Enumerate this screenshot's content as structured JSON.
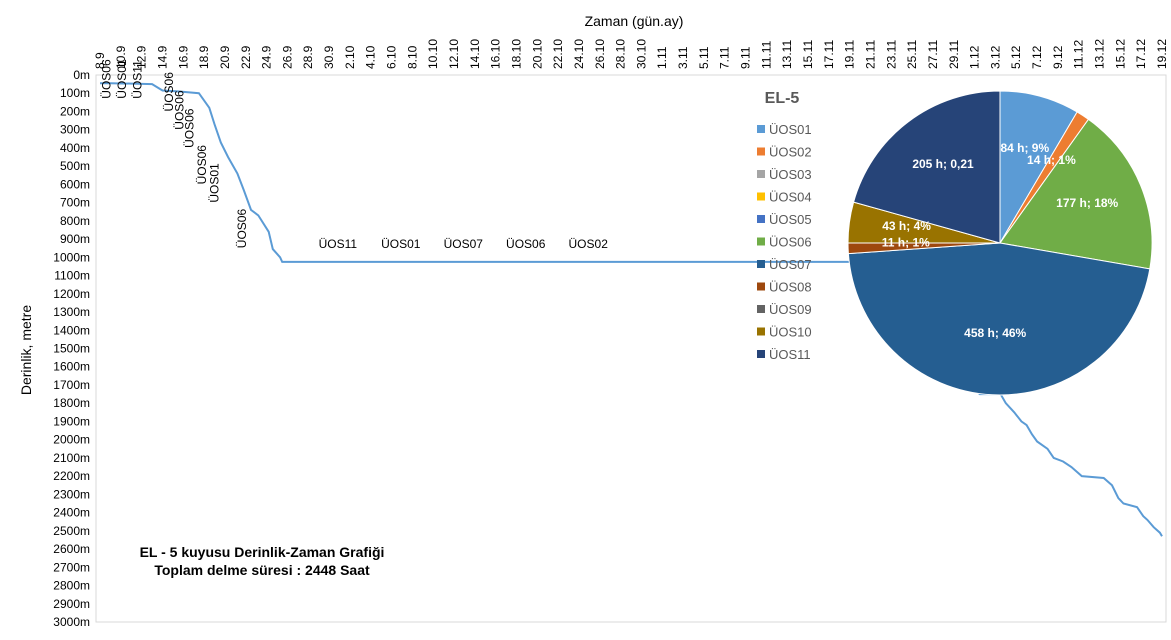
{
  "chart_data": [
    {
      "type": "line",
      "title": "EL - 5 kuyusu Derinlik-Zaman Grafiği",
      "subtitle": "Toplam delme süresi : 2448 Saat",
      "xlabel": "Zaman (gün.ay)",
      "ylabel": "Derinlik, metre",
      "x_ticks": [
        "8.9",
        "10.9",
        "12.9",
        "14.9",
        "16.9",
        "18.9",
        "20.9",
        "22.9",
        "24.9",
        "26.9",
        "28.9",
        "30.9",
        "2.10",
        "4.10",
        "6.10",
        "8.10",
        "10.10",
        "12.10",
        "14.10",
        "16.10",
        "18.10",
        "20.10",
        "22.10",
        "24.10",
        "26.10",
        "28.10",
        "30.10",
        "1.11",
        "3.11",
        "5.11",
        "7.11",
        "9.11",
        "11.11",
        "13.11",
        "15.11",
        "17.11",
        "19.11",
        "21.11",
        "23.11",
        "25.11",
        "27.11",
        "29.11",
        "1.12",
        "3.12",
        "5.12",
        "7.12",
        "9.12",
        "11.12",
        "13.12",
        "15.12",
        "17.12",
        "19.12"
      ],
      "y_ticks": [
        "0m",
        "100m",
        "200m",
        "300m",
        "400m",
        "500m",
        "600m",
        "700m",
        "800m",
        "900m",
        "1000m",
        "1100m",
        "1200m",
        "1300m",
        "1400m",
        "1500m",
        "1600m",
        "1700m",
        "1800m",
        "1900m",
        "2000m",
        "2100m",
        "2200m",
        "2300m",
        "2400m",
        "2500m",
        "2600m",
        "2700m",
        "2800m",
        "2900m",
        "3000m"
      ],
      "x_unit": "days since 8.9",
      "xlim": [
        0,
        102
      ],
      "ylim": [
        0,
        3000
      ],
      "y_inverted": true,
      "series": [
        {
          "name": "Derinlik",
          "color": "#5b9bd5",
          "points": [
            [
              0,
              45
            ],
            [
              1,
              45
            ],
            [
              5,
              50
            ],
            [
              6,
              85
            ],
            [
              7.5,
              90
            ],
            [
              9.5,
              100
            ],
            [
              10.5,
              180
            ],
            [
              11,
              270
            ],
            [
              11.6,
              370
            ],
            [
              12.3,
              450
            ],
            [
              13.2,
              540
            ],
            [
              13.8,
              630
            ],
            [
              14.5,
              740
            ],
            [
              15.2,
              770
            ],
            [
              16.2,
              860
            ],
            [
              16.6,
              955
            ],
            [
              17.3,
              1000
            ],
            [
              17.5,
              1025
            ],
            [
              73.5,
              1025
            ],
            [
              73.8,
              1070
            ],
            [
              74.5,
              1090
            ],
            [
              75,
              1130
            ],
            [
              75.5,
              1150
            ],
            [
              76,
              1170
            ],
            [
              76.5,
              1200
            ],
            [
              77,
              1230
            ],
            [
              77.6,
              1270
            ],
            [
              78,
              1300
            ],
            [
              78.6,
              1350
            ],
            [
              79,
              1400
            ],
            [
              79.5,
              1450
            ],
            [
              80,
              1480
            ],
            [
              80.5,
              1520
            ],
            [
              81,
              1540
            ],
            [
              81.5,
              1580
            ],
            [
              82,
              1610
            ],
            [
              82.5,
              1650
            ],
            [
              83,
              1680
            ],
            [
              83.5,
              1700
            ],
            [
              84.5,
              1750
            ],
            [
              86.5,
              1750
            ],
            [
              87,
              1800
            ],
            [
              87.8,
              1850
            ],
            [
              88.5,
              1900
            ],
            [
              89,
              1920
            ],
            [
              89.5,
              1970
            ],
            [
              90,
              2010
            ],
            [
              91,
              2050
            ],
            [
              91.6,
              2100
            ],
            [
              92.5,
              2120
            ],
            [
              93.3,
              2150
            ],
            [
              94.3,
              2200
            ],
            [
              96.4,
              2210
            ],
            [
              97.2,
              2250
            ],
            [
              97.8,
              2320
            ],
            [
              98.3,
              2350
            ],
            [
              99.6,
              2370
            ],
            [
              100.2,
              2420
            ],
            [
              100.6,
              2440
            ],
            [
              101.2,
              2480
            ],
            [
              101.8,
              2510
            ],
            [
              102,
              2530
            ]
          ]
        }
      ],
      "annotations": [
        {
          "text": "ÜOS06",
          "x": 1,
          "y": 130
        },
        {
          "text": "ÜOS01",
          "x": 2.5,
          "y": 130
        },
        {
          "text": "ÜOS11",
          "x": 4,
          "y": 130
        },
        {
          "text": "ÜOS06",
          "x": 7,
          "y": 200
        },
        {
          "text": "ÜOS06",
          "x": 8,
          "y": 300
        },
        {
          "text": "ÜOS06",
          "x": 9,
          "y": 400
        },
        {
          "text": "ÜOS06",
          "x": 10.2,
          "y": 600
        },
        {
          "text": "ÜOS01",
          "x": 11.4,
          "y": 700
        },
        {
          "text": "ÜOS06",
          "x": 14,
          "y": 950
        },
        {
          "text": "ÜOS11",
          "x": 21,
          "y": 950
        },
        {
          "text": "ÜOS01",
          "x": 27,
          "y": 950
        },
        {
          "text": "ÜOS07",
          "x": 33,
          "y": 950
        },
        {
          "text": "ÜOS06",
          "x": 39,
          "y": 950
        },
        {
          "text": "ÜOS02",
          "x": 45,
          "y": 950
        }
      ]
    },
    {
      "type": "pie",
      "title": "EL-5",
      "labels": [
        "ÜOS01",
        "ÜOS02",
        "ÜOS03",
        "ÜOS04",
        "ÜOS05",
        "ÜOS06",
        "ÜOS07",
        "ÜOS08",
        "ÜOS09",
        "ÜOS10",
        "ÜOS11"
      ],
      "colors": [
        "#5b9bd5",
        "#ed7d31",
        "#a5a5a5",
        "#ffc000",
        "#4472c4",
        "#70ad47",
        "#255e91",
        "#9e480e",
        "#636363",
        "#997300",
        "#264478"
      ],
      "values": [
        84,
        14,
        0,
        0,
        0,
        177,
        458,
        11,
        0,
        43,
        205
      ],
      "slice_labels": [
        {
          "series": "ÜOS01",
          "text": "84 h; 9%"
        },
        {
          "series": "ÜOS02",
          "text": "14 h; 1%"
        },
        {
          "series": "ÜOS06",
          "text": "177 h; 18%"
        },
        {
          "series": "ÜOS07",
          "text": "458 h; 46%"
        },
        {
          "series": "ÜOS08",
          "text": "11 h; 1%"
        },
        {
          "series": "ÜOS10",
          "text": "43 h; 4%"
        },
        {
          "series": "ÜOS11",
          "text": "205 h; 0,21"
        }
      ]
    }
  ]
}
